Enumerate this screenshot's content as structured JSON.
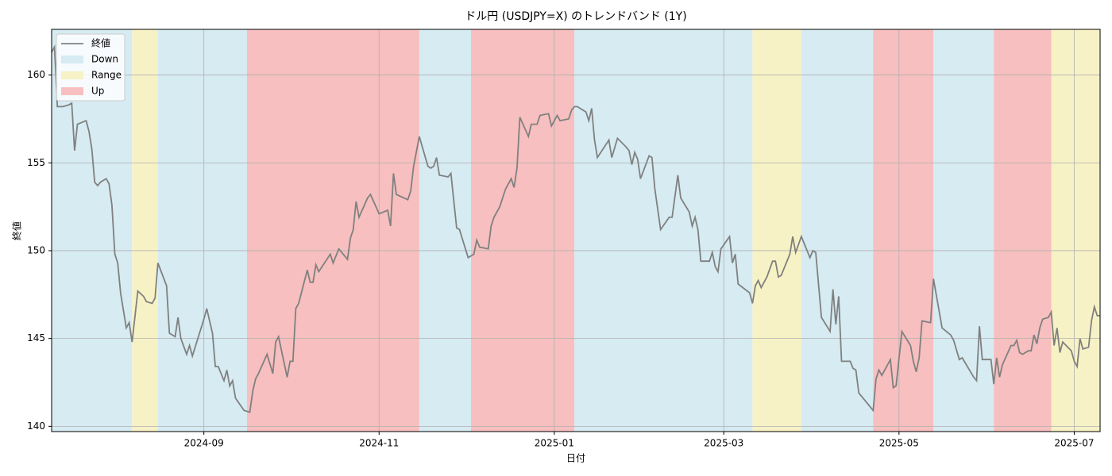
{
  "chart_data": {
    "type": "line",
    "title": "ドル円 (USDJPY=X) のトレンドバンド (1Y)",
    "xlabel": "日付",
    "ylabel": "終値",
    "xlim": [
      0,
      365
    ],
    "xticks": [
      {
        "value": 53,
        "label": "2024-09"
      },
      {
        "value": 114,
        "label": "2024-11"
      },
      {
        "value": 175,
        "label": "2025-01"
      },
      {
        "value": 234,
        "label": "2025-03"
      },
      {
        "value": 295,
        "label": "2025-05"
      },
      {
        "value": 356,
        "label": "2025-07"
      }
    ],
    "ylim": [
      139.7,
      162.6
    ],
    "yticks": [
      140,
      145,
      150,
      155,
      160
    ],
    "grid": true,
    "legend_position": "upper left",
    "trends": [
      {
        "name": "Down",
        "color": "#d6ebf2"
      },
      {
        "name": "Range",
        "color": "#f7f2c5"
      },
      {
        "name": "Up",
        "color": "#f7bfbf"
      }
    ],
    "bands": [
      {
        "trend": "Down",
        "start": 0,
        "end": 28
      },
      {
        "trend": "Range",
        "start": 28,
        "end": 37
      },
      {
        "trend": "Down",
        "start": 37,
        "end": 68
      },
      {
        "trend": "Up",
        "start": 68,
        "end": 128
      },
      {
        "trend": "Down",
        "start": 128,
        "end": 146
      },
      {
        "trend": "Up",
        "start": 146,
        "end": 182
      },
      {
        "trend": "Down",
        "start": 182,
        "end": 244
      },
      {
        "trend": "Range",
        "start": 244,
        "end": 261
      },
      {
        "trend": "Down",
        "start": 261,
        "end": 286
      },
      {
        "trend": "Up",
        "start": 286,
        "end": 307
      },
      {
        "trend": "Down",
        "start": 307,
        "end": 328
      },
      {
        "trend": "Up",
        "start": 328,
        "end": 348
      },
      {
        "trend": "Range",
        "start": 348,
        "end": 365
      }
    ],
    "x": [
      0,
      1,
      2,
      4,
      6,
      7,
      8,
      9,
      12,
      13,
      14,
      15,
      16,
      17,
      19,
      20,
      21,
      22,
      23,
      24,
      26,
      27,
      28,
      30,
      32,
      33,
      35,
      36,
      37,
      40,
      41,
      43,
      44,
      45,
      47,
      48,
      49,
      53,
      54,
      56,
      57,
      58,
      60,
      61,
      62,
      63,
      64,
      67,
      69,
      70,
      71,
      72,
      75,
      77,
      78,
      79,
      82,
      83,
      84,
      85,
      86,
      89,
      90,
      91,
      92,
      93,
      97,
      98,
      100,
      103,
      104,
      105,
      106,
      107,
      110,
      111,
      114,
      117,
      118,
      119,
      120,
      124,
      125,
      126,
      128,
      131,
      132,
      133,
      134,
      135,
      138,
      139,
      141,
      142,
      145,
      147,
      148,
      149,
      152,
      153,
      154,
      156,
      158,
      160,
      161,
      162,
      163,
      166,
      167,
      169,
      170,
      173,
      174,
      176,
      177,
      180,
      181,
      182,
      183,
      186,
      187,
      188,
      189,
      190,
      194,
      195,
      197,
      200,
      201,
      202,
      203,
      204,
      205,
      208,
      209,
      210,
      212,
      215,
      216,
      218,
      219,
      222,
      223,
      224,
      225,
      226,
      229,
      230,
      231,
      232,
      233,
      236,
      237,
      238,
      239,
      243,
      244,
      245,
      246,
      247,
      249,
      251,
      252,
      253,
      254,
      257,
      258,
      259,
      261,
      264,
      265,
      266,
      268,
      271,
      272,
      273,
      274,
      275,
      278,
      279,
      280,
      281,
      286,
      287,
      288,
      289,
      292,
      293,
      294,
      296,
      299,
      300,
      301,
      302,
      303,
      306,
      307,
      310,
      313,
      314,
      316,
      317,
      321,
      322,
      323,
      324,
      327,
      328,
      329,
      330,
      331,
      334,
      335,
      336,
      337,
      338,
      340,
      341,
      342,
      343,
      344,
      345,
      347,
      348,
      349,
      350,
      351,
      352,
      355,
      356,
      357,
      358,
      359,
      361,
      362,
      363,
      364,
      365
    ],
    "series": [
      {
        "name": "終値",
        "color": "#808080",
        "values": [
          161.3,
          161.6,
          158.2,
          158.2,
          158.3,
          158.4,
          155.7,
          157.2,
          157.4,
          156.8,
          155.8,
          153.9,
          153.7,
          153.9,
          154.1,
          153.8,
          152.6,
          149.8,
          149.3,
          147.6,
          145.6,
          145.9,
          144.8,
          147.7,
          147.4,
          147.1,
          147.0,
          147.3,
          149.3,
          148.0,
          145.3,
          145.1,
          146.2,
          145.0,
          144.1,
          144.6,
          144.0,
          146.1,
          146.7,
          145.3,
          143.4,
          143.4,
          142.6,
          143.2,
          142.3,
          142.6,
          141.6,
          140.9,
          140.8,
          142.0,
          142.7,
          143.0,
          144.1,
          143.0,
          144.8,
          145.1,
          142.8,
          143.7,
          143.7,
          146.7,
          147.0,
          148.9,
          148.2,
          148.2,
          149.2,
          148.8,
          149.8,
          149.3,
          150.1,
          149.5,
          150.7,
          151.2,
          152.8,
          151.9,
          153.0,
          153.2,
          152.1,
          152.3,
          151.4,
          154.4,
          153.2,
          152.9,
          153.4,
          154.8,
          156.5,
          154.8,
          154.7,
          154.8,
          155.3,
          154.3,
          154.2,
          154.4,
          151.3,
          151.2,
          149.6,
          149.8,
          150.6,
          150.2,
          150.1,
          151.4,
          151.9,
          152.5,
          153.5,
          154.1,
          153.6,
          154.7,
          157.6,
          156.5,
          157.2,
          157.2,
          157.7,
          157.8,
          157.1,
          157.7,
          157.4,
          157.5,
          158.0,
          158.2,
          158.2,
          157.9,
          157.4,
          158.1,
          156.3,
          155.3,
          156.3,
          155.3,
          156.4,
          155.9,
          155.7,
          154.9,
          155.6,
          155.2,
          154.1,
          155.4,
          155.3,
          153.5,
          151.2,
          151.9,
          151.9,
          154.3,
          153.0,
          152.2,
          151.4,
          151.9,
          151.2,
          149.4,
          149.4,
          149.9,
          149.1,
          148.8,
          150.1,
          150.8,
          149.3,
          149.8,
          148.1,
          147.6,
          147.0,
          148.0,
          148.3,
          147.9,
          148.5,
          149.4,
          149.4,
          148.5,
          148.6,
          149.8,
          150.8,
          149.9,
          150.8,
          149.6,
          150.0,
          149.9,
          146.2,
          145.4,
          147.8,
          145.8,
          147.4,
          143.7,
          143.7,
          143.3,
          143.2,
          141.9,
          140.9,
          142.7,
          143.2,
          142.9,
          143.8,
          142.2,
          142.3,
          145.4,
          144.6,
          143.7,
          143.1,
          143.9,
          146.0,
          145.9,
          148.4,
          145.6,
          145.2,
          144.9,
          143.8,
          143.9,
          142.8,
          142.6,
          145.7,
          143.8,
          143.8,
          142.4,
          143.9,
          142.8,
          143.5,
          144.6,
          144.6,
          144.9,
          144.2,
          144.1,
          144.3,
          144.3,
          145.2,
          144.7,
          145.6,
          146.1,
          146.2,
          146.5,
          144.6,
          145.6,
          144.2,
          144.8,
          144.3,
          143.7,
          143.4,
          145.0,
          144.4,
          144.5,
          146.0,
          146.8,
          146.3,
          146.3
        ]
      }
    ]
  }
}
